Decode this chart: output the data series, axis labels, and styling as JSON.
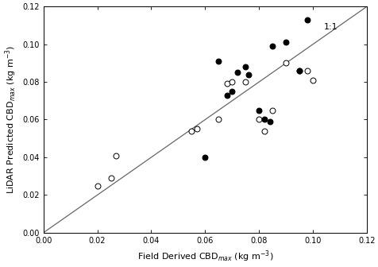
{
  "open_circles": [
    [
      0.02,
      0.025
    ],
    [
      0.025,
      0.029
    ],
    [
      0.027,
      0.041
    ],
    [
      0.055,
      0.054
    ],
    [
      0.057,
      0.055
    ],
    [
      0.065,
      0.06
    ],
    [
      0.068,
      0.079
    ],
    [
      0.07,
      0.08
    ],
    [
      0.075,
      0.08
    ],
    [
      0.08,
      0.06
    ],
    [
      0.082,
      0.054
    ],
    [
      0.085,
      0.065
    ],
    [
      0.09,
      0.09
    ],
    [
      0.095,
      0.086
    ],
    [
      0.098,
      0.086
    ],
    [
      0.1,
      0.081
    ]
  ],
  "filled_circles": [
    [
      0.06,
      0.04
    ],
    [
      0.065,
      0.091
    ],
    [
      0.068,
      0.073
    ],
    [
      0.07,
      0.075
    ],
    [
      0.072,
      0.085
    ],
    [
      0.075,
      0.088
    ],
    [
      0.076,
      0.084
    ],
    [
      0.08,
      0.065
    ],
    [
      0.082,
      0.06
    ],
    [
      0.084,
      0.059
    ],
    [
      0.085,
      0.099
    ],
    [
      0.09,
      0.101
    ],
    [
      0.095,
      0.086
    ],
    [
      0.098,
      0.113
    ]
  ],
  "xlim": [
    0.0,
    0.12
  ],
  "ylim": [
    0.0,
    0.12
  ],
  "xticks": [
    0.0,
    0.02,
    0.04,
    0.06,
    0.08,
    0.1,
    0.12
  ],
  "yticks": [
    0.0,
    0.02,
    0.04,
    0.06,
    0.08,
    0.1,
    0.12
  ],
  "xlabel": "Field Derived CBD$_{max}$ (kg m$^{-3}$)",
  "ylabel": "LiDAR Predicted CBD$_{max}$ (kg m$^{-3}$)",
  "line_label": "1:1",
  "open_color": "white",
  "filled_color": "black",
  "edge_color": "black",
  "marker_size": 5,
  "line_color": "#666666",
  "background_color": "#ffffff",
  "tick_labelsize": 7,
  "xlabel_fontsize": 8,
  "ylabel_fontsize": 8,
  "label_fontsize": 8
}
